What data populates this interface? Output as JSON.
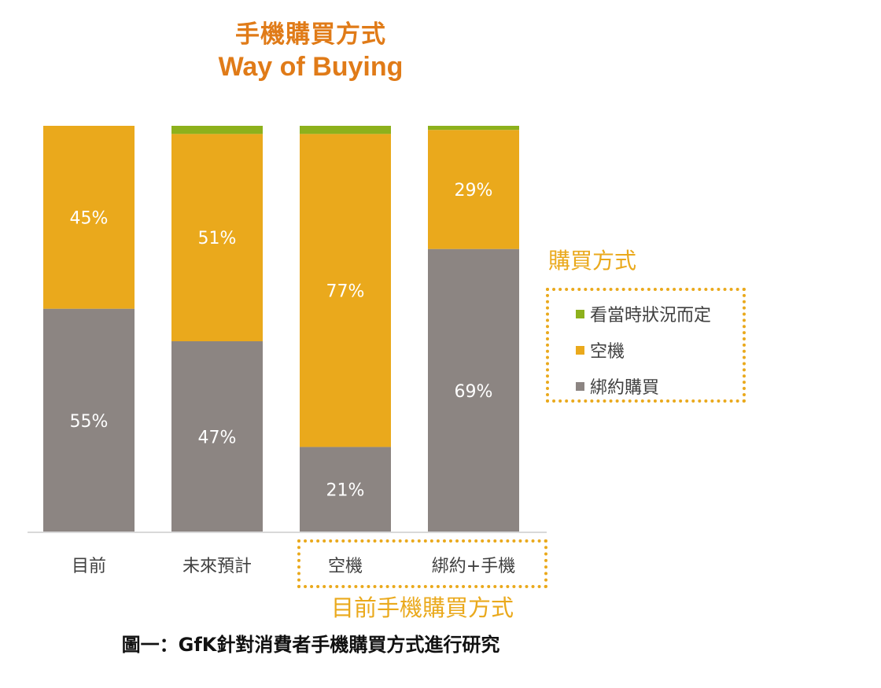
{
  "title_zh": "手機購買方式",
  "title_en": "Way of Buying",
  "legend": {
    "title": "購買方式",
    "items": [
      {
        "label": "看當時狀況而定",
        "color": "#8db11c"
      },
      {
        "label": "空機",
        "color": "#eaa91c"
      },
      {
        "label": "綁約購買",
        "color": "#8c8582"
      }
    ]
  },
  "group_label": "目前手機購買方式",
  "caption": "圖一：GfK針對消費者手機購買方式進行研究",
  "chart_data": {
    "type": "bar",
    "stacked": true,
    "percent": true,
    "categories": [
      "目前",
      "未來預計",
      "空機",
      "綁約+手機"
    ],
    "series": [
      {
        "name": "綁約購買",
        "color": "#8c8582",
        "values": [
          55,
          47,
          21,
          69
        ],
        "labels": [
          "55%",
          "47%",
          "21%",
          "69%"
        ]
      },
      {
        "name": "空機",
        "color": "#eaa91c",
        "values": [
          45,
          51,
          77,
          29
        ],
        "labels": [
          "45%",
          "51%",
          "77%",
          "29%"
        ]
      },
      {
        "name": "看當時狀況而定",
        "color": "#8db11c",
        "values": [
          0,
          2,
          2,
          1
        ],
        "labels": [
          "",
          "",
          "",
          ""
        ]
      }
    ],
    "ylim": [
      0,
      100
    ],
    "grid": false,
    "legend_position": "right"
  }
}
